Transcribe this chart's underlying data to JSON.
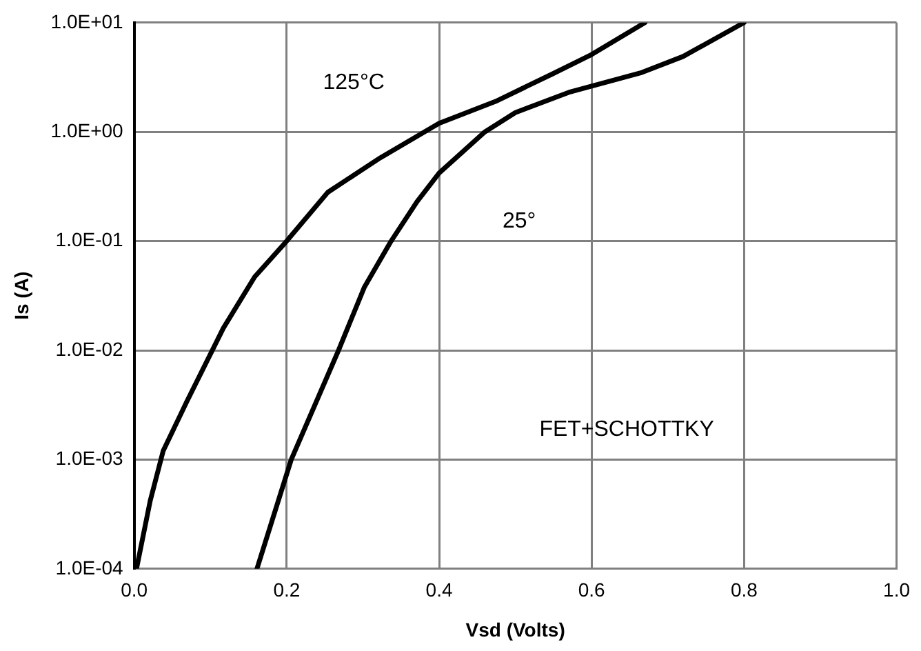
{
  "chart_data": {
    "type": "line",
    "xlabel": "Vsd (Volts)",
    "ylabel": "Is (A)",
    "log": "y",
    "xlim": [
      0,
      1
    ],
    "xticks": [
      {
        "value": 0,
        "label": "0.0"
      },
      0.2,
      0.4,
      0.6,
      0.8,
      {
        "value": 1,
        "label": "1.0"
      }
    ],
    "ylim": [
      0.0001,
      10
    ],
    "yticks": [
      {
        "value": 0.0001,
        "label": "1.0E-04"
      },
      {
        "value": 0.001,
        "label": "1.0E-03"
      },
      {
        "value": 0.01,
        "label": "1.0E-02"
      },
      {
        "value": 0.1,
        "label": "1.0E-01"
      },
      {
        "value": 1,
        "label": "1.0E+00"
      },
      {
        "value": 10,
        "label": "1.0E+01"
      }
    ],
    "grid": true,
    "legend": false,
    "marker": "none",
    "line_style": "solid",
    "series": [
      {
        "color": "#000000",
        "x": [
          0.003,
          0.021,
          0.038,
          0.069,
          0.117,
          0.158,
          0.2,
          0.254,
          0.323,
          0.4,
          0.474,
          0.549,
          0.6,
          0.67
        ],
        "values": [
          0.0001,
          0.00042,
          0.0012,
          0.0034,
          0.016,
          0.047,
          0.1,
          0.28,
          0.58,
          1.2,
          1.9,
          3.4,
          5.1,
          10
        ]
      },
      {
        "color": "#000000",
        "x": [
          0.161,
          0.206,
          0.268,
          0.302,
          0.337,
          0.371,
          0.4,
          0.46,
          0.5,
          0.57,
          0.666,
          0.72,
          0.8
        ],
        "values": [
          0.0001,
          0.001,
          0.01,
          0.038,
          0.1,
          0.23,
          0.42,
          1.0,
          1.5,
          2.3,
          3.5,
          4.9,
          10
        ]
      }
    ],
    "annotations": [
      "125°C",
      "25°",
      "FET+SCHOTTKY"
    ]
  }
}
